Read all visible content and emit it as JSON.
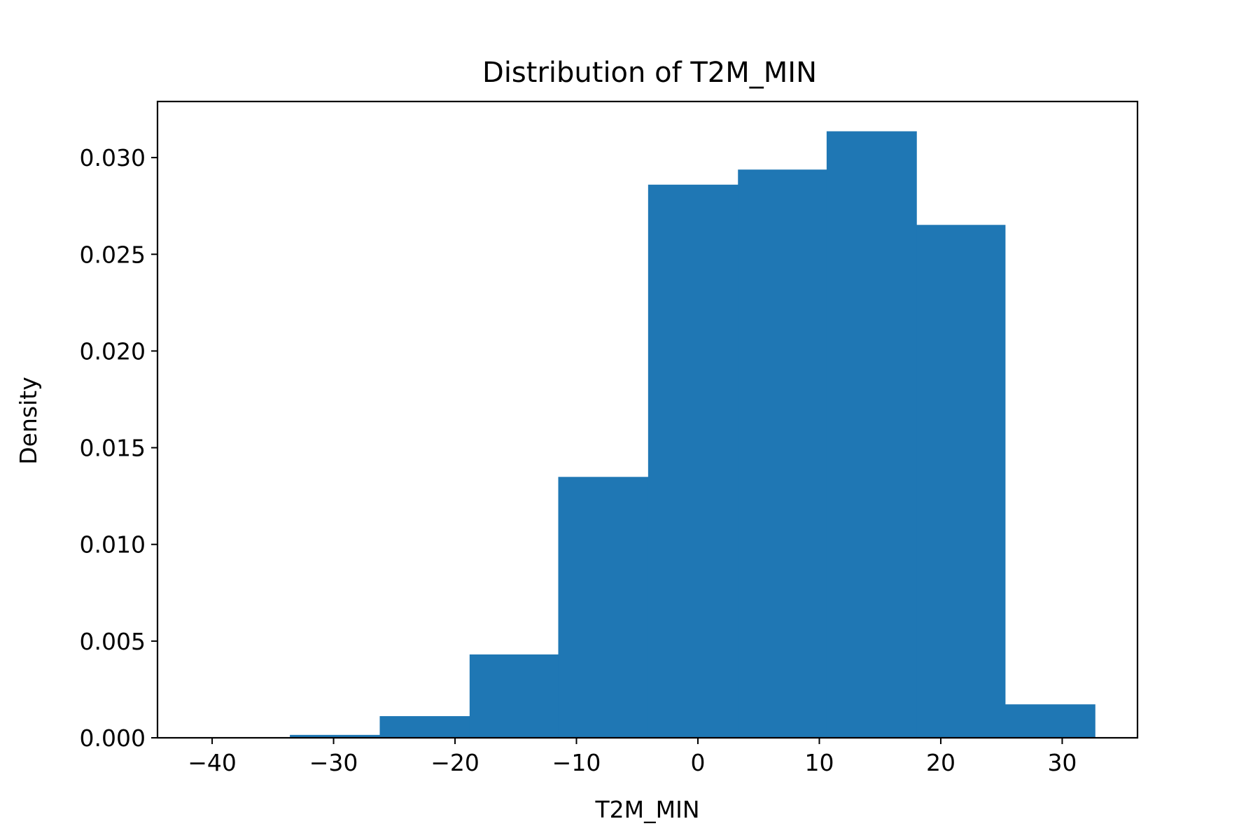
{
  "chart_data": {
    "type": "bar",
    "title": "Distribution of T2M_MIN",
    "xlabel": "T2M_MIN",
    "ylabel": "Density",
    "bin_edges": [
      -33.6,
      -26.2,
      -18.8,
      -11.5,
      -4.1,
      3.3,
      10.6,
      18.0,
      25.3,
      32.7
    ],
    "values": [
      0.00015,
      0.00112,
      0.00431,
      0.01349,
      0.0286,
      0.02938,
      0.03136,
      0.02652,
      0.00173
    ],
    "xlim": [
      -44.5,
      36.2
    ],
    "ylim": [
      0,
      0.0329
    ],
    "xticks": [
      -40,
      -30,
      -20,
      -10,
      0,
      10,
      20,
      30
    ],
    "xtick_labels": [
      "−40",
      "−30",
      "−20",
      "−10",
      "0",
      "10",
      "20",
      "30"
    ],
    "yticks": [
      0,
      0.005,
      0.01,
      0.015,
      0.02,
      0.025,
      0.03
    ],
    "ytick_labels": [
      "0.000",
      "0.005",
      "0.010",
      "0.015",
      "0.020",
      "0.025",
      "0.030"
    ],
    "bar_color": "#1f77b4",
    "grid": false,
    "legend": "none"
  }
}
